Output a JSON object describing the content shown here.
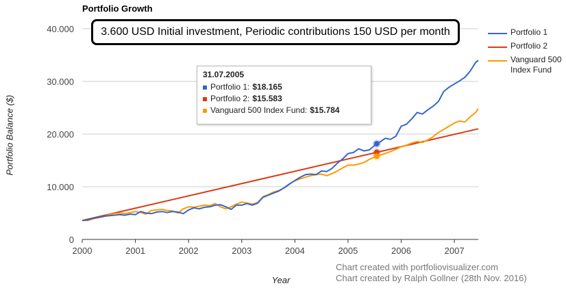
{
  "title": "Portfolio Growth",
  "banner": "3.600 USD Initial investment, Periodic contributions 150 USD per month",
  "tooltip": {
    "date": "31.07.2005",
    "rows": [
      {
        "label": "Portfolio 1:",
        "value": "$18.165",
        "color": "#3366cc"
      },
      {
        "label": "Portfolio 2:",
        "value": "$15.583",
        "color": "#dc3912"
      },
      {
        "label": "Vanguard 500 Index Fund:",
        "value": "$15.784",
        "color": "#ff9900"
      }
    ]
  },
  "credits": [
    "Chart created with portfoliovisualizer.com",
    "Chart created by Ralph Gollner (28th Nov. 2016)"
  ],
  "chart_data": {
    "type": "line",
    "title": "Portfolio Growth",
    "xlabel": "Year",
    "ylabel": "Portfolio Balance ($)",
    "xlim": [
      2000.0,
      2007.45
    ],
    "ylim": [
      0,
      40000
    ],
    "yticks": [
      0,
      10000,
      20000,
      30000,
      40000
    ],
    "ytick_labels": [
      "0",
      "10.000",
      "20.000",
      "30.000",
      "40.000"
    ],
    "xticks": [
      2000,
      2001,
      2002,
      2003,
      2004,
      2005,
      2006,
      2007
    ],
    "xtick_labels": [
      "2000",
      "2001",
      "2002",
      "2003",
      "2004",
      "2005",
      "2006",
      "2007"
    ],
    "grid": true,
    "legend_position": "right",
    "highlight": {
      "x": 2005.54,
      "date": "31.07.2005"
    },
    "series": [
      {
        "name": "Portfolio 1",
        "color": "#3366cc",
        "x": [
          2000.0,
          2000.1,
          2000.2,
          2000.3,
          2000.4,
          2000.5,
          2000.6,
          2000.7,
          2000.8,
          2000.9,
          2001.0,
          2001.1,
          2001.2,
          2001.3,
          2001.4,
          2001.5,
          2001.6,
          2001.7,
          2001.8,
          2001.9,
          2002.0,
          2002.1,
          2002.2,
          2002.3,
          2002.4,
          2002.5,
          2002.6,
          2002.7,
          2002.8,
          2002.9,
          2003.0,
          2003.1,
          2003.2,
          2003.3,
          2003.4,
          2003.5,
          2003.6,
          2003.7,
          2003.8,
          2003.9,
          2004.0,
          2004.1,
          2004.2,
          2004.3,
          2004.4,
          2004.5,
          2004.6,
          2004.7,
          2004.8,
          2004.9,
          2005.0,
          2005.1,
          2005.2,
          2005.3,
          2005.4,
          2005.54,
          2005.6,
          2005.7,
          2005.8,
          2005.9,
          2006.0,
          2006.1,
          2006.2,
          2006.3,
          2006.4,
          2006.5,
          2006.6,
          2006.7,
          2006.8,
          2006.9,
          2007.0,
          2007.1,
          2007.2,
          2007.3,
          2007.4,
          2007.45
        ],
        "values": [
          3600,
          3700,
          4000,
          4200,
          4400,
          4500,
          4600,
          4700,
          4600,
          4800,
          4700,
          5300,
          5000,
          4900,
          5200,
          5300,
          5100,
          5300,
          5200,
          4900,
          5600,
          6000,
          5800,
          6100,
          6200,
          6500,
          6600,
          6200,
          5700,
          6500,
          6500,
          6800,
          6500,
          6900,
          8000,
          8400,
          8800,
          9200,
          9800,
          10500,
          11200,
          11800,
          12300,
          12400,
          12300,
          13000,
          12900,
          13500,
          14500,
          15300,
          16300,
          16500,
          17200,
          16800,
          17000,
          18165,
          18500,
          19200,
          19000,
          19600,
          21500,
          21900,
          22900,
          24100,
          23800,
          24600,
          25300,
          26200,
          28100,
          28900,
          29500,
          30100,
          30800,
          32000,
          33600,
          34000
        ]
      },
      {
        "name": "Portfolio 2",
        "color": "#dc3912",
        "x": [
          2000.0,
          2007.45
        ],
        "values": [
          3600,
          21000
        ]
      },
      {
        "name": "Vanguard 500 Index Fund",
        "color": "#ff9900",
        "x": [
          2000.0,
          2000.1,
          2000.2,
          2000.3,
          2000.4,
          2000.5,
          2000.6,
          2000.7,
          2000.8,
          2000.9,
          2001.0,
          2001.1,
          2001.2,
          2001.3,
          2001.4,
          2001.5,
          2001.6,
          2001.7,
          2001.8,
          2001.9,
          2002.0,
          2002.1,
          2002.2,
          2002.3,
          2002.4,
          2002.5,
          2002.6,
          2002.7,
          2002.8,
          2002.9,
          2003.0,
          2003.1,
          2003.2,
          2003.3,
          2003.4,
          2003.5,
          2003.6,
          2003.7,
          2003.8,
          2003.9,
          2004.0,
          2004.1,
          2004.2,
          2004.3,
          2004.4,
          2004.5,
          2004.6,
          2004.7,
          2004.8,
          2004.9,
          2005.0,
          2005.1,
          2005.2,
          2005.3,
          2005.4,
          2005.54,
          2005.6,
          2005.7,
          2005.8,
          2005.9,
          2006.0,
          2006.1,
          2006.2,
          2006.3,
          2006.4,
          2006.5,
          2006.6,
          2006.7,
          2006.8,
          2006.9,
          2007.0,
          2007.1,
          2007.2,
          2007.3,
          2007.4,
          2007.45
        ],
        "values": [
          3600,
          3600,
          3900,
          4100,
          4300,
          4700,
          4900,
          5000,
          4900,
          5100,
          5300,
          5100,
          4800,
          5500,
          5600,
          5700,
          5500,
          5400,
          5000,
          5800,
          6200,
          6100,
          6300,
          6500,
          6400,
          6800,
          6200,
          5800,
          6200,
          6700,
          7100,
          6900,
          6700,
          7000,
          8100,
          8500,
          9000,
          9300,
          9800,
          10600,
          11100,
          11500,
          11800,
          12100,
          12300,
          12400,
          12100,
          12500,
          13000,
          13600,
          14100,
          14100,
          14300,
          14600,
          15200,
          15784,
          16000,
          16300,
          16700,
          17100,
          17600,
          17900,
          18300,
          18600,
          18400,
          18900,
          19500,
          20300,
          20900,
          21500,
          22100,
          22500,
          22300,
          23300,
          24100,
          24800
        ]
      }
    ]
  }
}
